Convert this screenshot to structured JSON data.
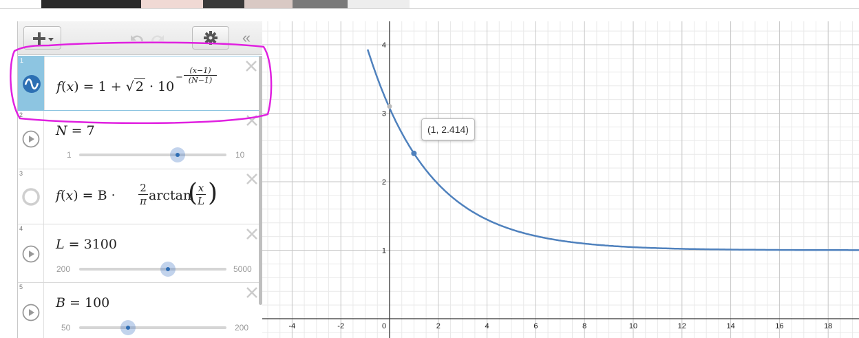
{
  "toolbar": {
    "add_icon": "plus-icon",
    "undo_icon": "undo-icon",
    "redo_icon": "redo-icon",
    "settings_icon": "gear-icon",
    "collapse_label": "«"
  },
  "expressions": [
    {
      "index": "1",
      "selected": true,
      "icon": "sine-wave-icon",
      "color": "#2d70b3",
      "latex_parts": {
        "f": "f",
        "lp": "(",
        "x": "x",
        "rp": ")",
        "eq": "= 1 +",
        "sqrt": "√",
        "rad": "2",
        "dot": "· 10",
        "minus": "−",
        "num": "(x−1)",
        "den": "(N−1)"
      }
    },
    {
      "index": "2",
      "icon": "play-icon",
      "lhs": "N",
      "rhs": "= 7",
      "slider": {
        "min": "1",
        "max": "10",
        "value": 7,
        "min_value": 1,
        "max_value": 10
      }
    },
    {
      "index": "3",
      "icon": "hidden-circle-icon",
      "parts": {
        "f": "f",
        "lp": "(",
        "x": "x",
        "rp": ")",
        "eq": "= B ·",
        "frac_num": "2",
        "frac_den": "π",
        "fn": "arctan",
        "inner_num": "x",
        "inner_den": "L"
      }
    },
    {
      "index": "4",
      "icon": "play-icon",
      "lhs": "L",
      "rhs": "= 3100",
      "slider": {
        "min": "200",
        "max": "5000",
        "value": 3100,
        "min_value": 200,
        "max_value": 5000
      }
    },
    {
      "index": "5",
      "icon": "play-icon",
      "lhs": "B",
      "rhs": "= 100",
      "slider": {
        "min": "50",
        "max": "200",
        "value": 100,
        "min_value": 50,
        "max_value": 200
      }
    }
  ],
  "graph": {
    "curve_color": "#4f81bd",
    "x_ticks": [
      "-4",
      "-2",
      "0",
      "2",
      "4",
      "6",
      "8",
      "10",
      "12",
      "14",
      "16",
      "18"
    ],
    "y_ticks": [
      "1",
      "2",
      "3",
      "4"
    ],
    "tooltip": "(1, 2.414)",
    "point": {
      "x": 1,
      "y": 2.414
    },
    "y_intercept": {
      "x": 0,
      "y": 3.1
    },
    "x_range": [
      -5,
      19
    ],
    "y_range": [
      -1,
      4.3
    ],
    "N": 7
  },
  "annotation_color": "#e020e0"
}
